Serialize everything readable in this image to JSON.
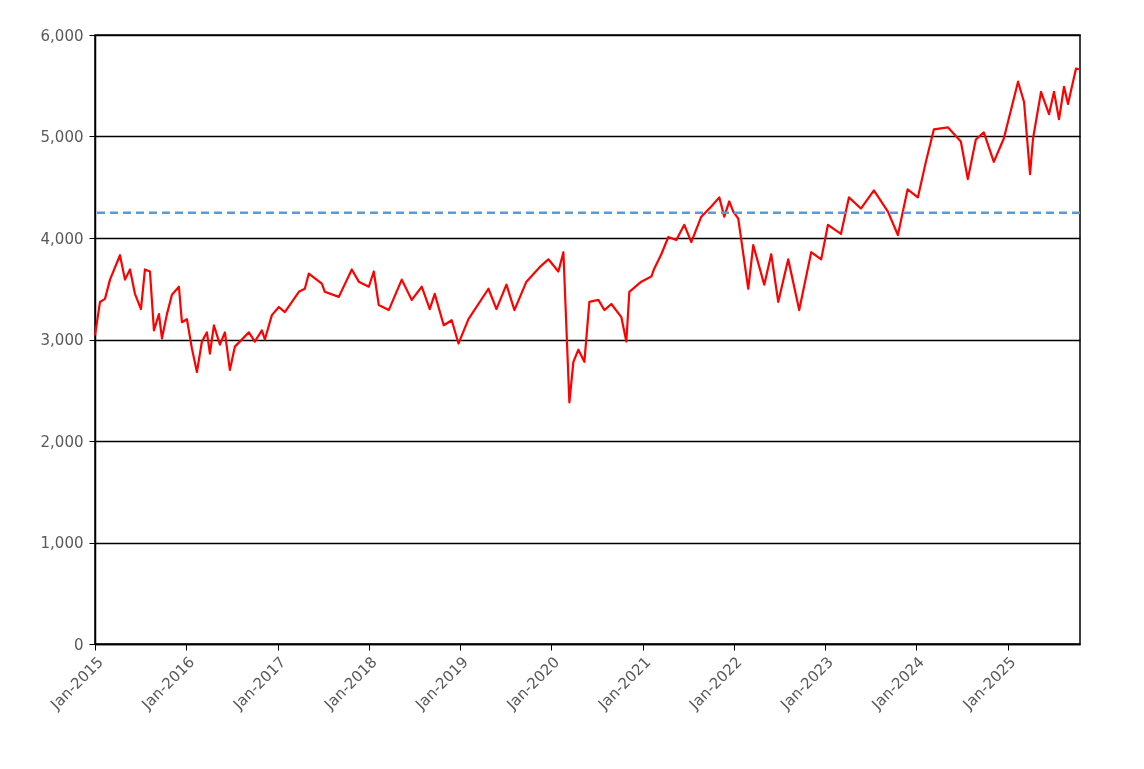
{
  "chart_data": {
    "type": "line",
    "x": [
      "2015-01-01",
      "2015-01-21",
      "2015-02-10",
      "2015-03-02",
      "2015-04-11",
      "2015-05-01",
      "2015-05-21",
      "2015-06-10",
      "2015-07-04",
      "2015-07-20",
      "2015-08-09",
      "2015-08-25",
      "2015-09-14",
      "2015-09-26",
      "2015-10-16",
      "2015-11-05",
      "2015-12-03",
      "2015-12-15",
      "2016-01-04",
      "2016-01-24",
      "2016-02-13",
      "2016-03-04",
      "2016-03-24",
      "2016-04-05",
      "2016-04-21",
      "2016-05-15",
      "2016-06-04",
      "2016-06-24",
      "2016-07-14",
      "2016-09-08",
      "2016-10-02",
      "2016-10-30",
      "2016-11-11",
      "2016-12-09",
      "2017-01-06",
      "2017-01-30",
      "2017-03-27",
      "2017-04-20",
      "2017-05-06",
      "2017-06-27",
      "2017-07-09",
      "2017-09-03",
      "2017-10-25",
      "2017-11-22",
      "2018-01-01",
      "2018-01-21",
      "2018-02-10",
      "2018-03-22",
      "2018-05-13",
      "2018-06-22",
      "2018-08-01",
      "2018-09-02",
      "2018-09-22",
      "2018-10-28",
      "2018-11-29",
      "2018-12-26",
      "2019-02-04",
      "2019-04-25",
      "2019-05-27",
      "2019-07-06",
      "2019-08-07",
      "2019-09-24",
      "2019-11-15",
      "2019-12-21",
      "2020-01-30",
      "2020-02-19",
      "2020-03-14",
      "2020-03-30",
      "2020-04-19",
      "2020-05-13",
      "2020-06-02",
      "2020-07-08",
      "2020-08-01",
      "2020-08-29",
      "2020-10-08",
      "2020-10-28",
      "2020-11-09",
      "2020-12-27",
      "2021-02-05",
      "2021-02-17",
      "2021-03-17",
      "2021-04-14",
      "2021-05-16",
      "2021-06-17",
      "2021-07-15",
      "2021-08-24",
      "2021-10-03",
      "2021-11-04",
      "2021-11-24",
      "2021-12-14",
      "2021-12-30",
      "2022-01-19",
      "2022-02-28",
      "2022-03-20",
      "2022-05-03",
      "2022-05-31",
      "2022-06-28",
      "2022-08-07",
      "2022-09-20",
      "2022-11-07",
      "2022-12-17",
      "2023-01-13",
      "2023-03-06",
      "2023-04-07",
      "2023-05-25",
      "2023-07-16",
      "2023-09-10",
      "2023-10-20",
      "2023-11-28",
      "2024-01-08",
      "2024-02-09",
      "2024-03-12",
      "2024-05-07",
      "2024-06-28",
      "2024-07-26",
      "2024-08-27",
      "2024-09-28",
      "2024-11-07",
      "2024-12-17",
      "2025-02-12",
      "2025-03-08",
      "2025-04-01",
      "2025-04-13",
      "2025-05-15",
      "2025-06-16",
      "2025-07-06",
      "2025-07-26",
      "2025-08-15",
      "2025-08-31",
      "2025-10-02",
      "2025-10-18"
    ],
    "series": [
      {
        "color": "#ff0000",
        "values": [
          3040,
          3370,
          3400,
          3590,
          3830,
          3590,
          3690,
          3450,
          3300,
          3690,
          3670,
          3090,
          3250,
          3010,
          3250,
          3440,
          3520,
          3170,
          3200,
          2910,
          2680,
          2980,
          3070,
          2860,
          3140,
          2950,
          3070,
          2700,
          2930,
          3070,
          2980,
          3090,
          3000,
          3240,
          3320,
          3270,
          3470,
          3500,
          3650,
          3550,
          3470,
          3420,
          3690,
          3570,
          3520,
          3670,
          3340,
          3290,
          3590,
          3390,
          3520,
          3300,
          3450,
          3140,
          3190,
          2960,
          3200,
          3500,
          3300,
          3540,
          3290,
          3570,
          3710,
          3790,
          3670,
          3860,
          2380,
          2780,
          2900,
          2780,
          3370,
          3390,
          3290,
          3350,
          3220,
          2980,
          3470,
          3570,
          3620,
          3700,
          3840,
          4010,
          3980,
          4130,
          3960,
          4210,
          4310,
          4400,
          4210,
          4360,
          4260,
          4190,
          3500,
          3930,
          3540,
          3840,
          3370,
          3790,
          3290,
          3860,
          3790,
          4130,
          4040,
          4400,
          4290,
          4470,
          4260,
          4030,
          4480,
          4400,
          4750,
          5070,
          5090,
          4950,
          4580,
          4970,
          5040,
          4750,
          4980,
          5540,
          5340,
          4630,
          4980,
          5440,
          5220,
          5440,
          5170,
          5490,
          5320,
          5670,
          5660
        ]
      }
    ],
    "xlim": [
      "2015-01-01",
      "2025-10-18"
    ],
    "xticks": [
      {
        "value": "2015-01-01",
        "label": "Jan-2015"
      },
      {
        "value": "2016-01-01",
        "label": "Jan-2016"
      },
      {
        "value": "2017-01-01",
        "label": "Jan-2017"
      },
      {
        "value": "2018-01-01",
        "label": "Jan-2018"
      },
      {
        "value": "2019-01-01",
        "label": "Jan-2019"
      },
      {
        "value": "2020-01-01",
        "label": "Jan-2020"
      },
      {
        "value": "2021-01-01",
        "label": "Jan-2021"
      },
      {
        "value": "2022-01-01",
        "label": "Jan-2022"
      },
      {
        "value": "2023-01-01",
        "label": "Jan-2023"
      },
      {
        "value": "2024-01-01",
        "label": "Jan-2024"
      },
      {
        "value": "2025-01-01",
        "label": "Jan-2025"
      }
    ],
    "ylim": [
      0,
      6000
    ],
    "yticks": [
      0,
      {
        "value": 1000,
        "label": "1,000"
      },
      {
        "value": 2000,
        "label": "2,000"
      },
      {
        "value": 3000,
        "label": "3,000"
      },
      {
        "value": 4000,
        "label": "4,000"
      },
      {
        "value": 5000,
        "label": "5,000"
      },
      {
        "value": 6000,
        "label": "6,000"
      }
    ],
    "ref_lines": [
      {
        "axis": "y",
        "value": 4250,
        "color": "#5b9bd5",
        "line_style": "dashed"
      }
    ],
    "grid": "y",
    "marker": "none",
    "line_style": "solid"
  }
}
